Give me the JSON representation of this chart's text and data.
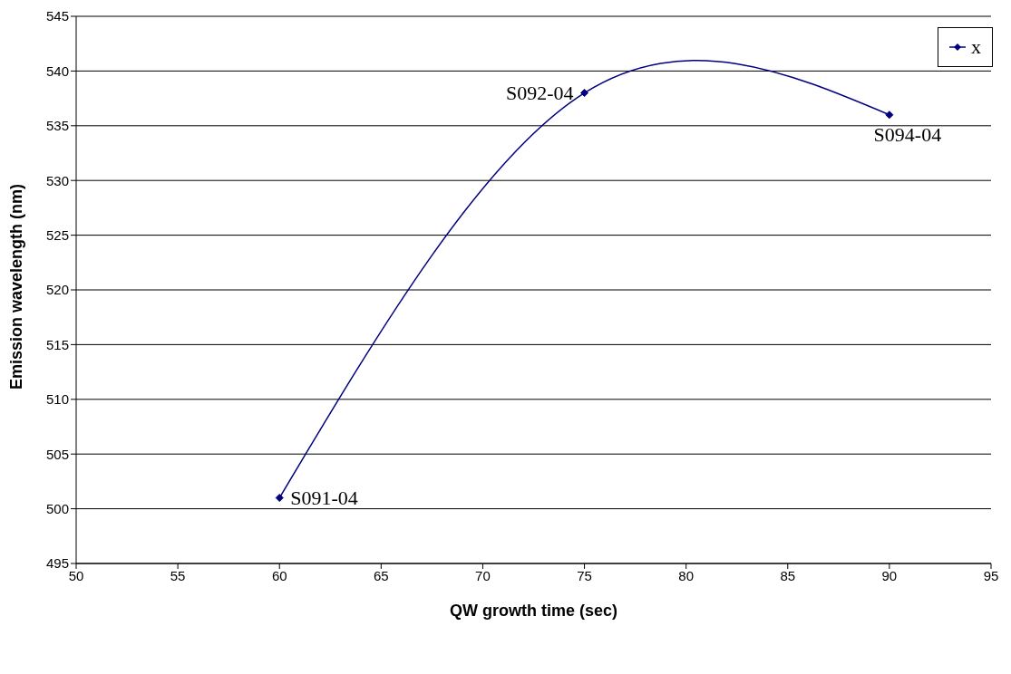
{
  "chart_data": {
    "type": "line",
    "xlabel": "QW growth time (sec)",
    "ylabel": "Emission wavelength (nm)",
    "x": [
      60,
      75,
      90
    ],
    "series": [
      {
        "name": "x",
        "color": "#000080",
        "values": [
          501,
          538,
          536
        ]
      }
    ],
    "xlim": [
      50,
      95
    ],
    "xticks": [
      50,
      55,
      60,
      65,
      70,
      75,
      80,
      85,
      90,
      95
    ],
    "ylim": [
      495,
      545
    ],
    "yticks": [
      495,
      500,
      505,
      510,
      515,
      520,
      525,
      530,
      535,
      540,
      545
    ],
    "grid": "y",
    "legend": "top right",
    "marker": "diamond",
    "line_style": "solid",
    "annotations": [
      {
        "text": "S091-04",
        "x": 60,
        "y": 501
      },
      {
        "text": "S092-04",
        "x": 75,
        "y": 538
      },
      {
        "text": "S094-04",
        "x": 90,
        "y": 536
      }
    ]
  }
}
